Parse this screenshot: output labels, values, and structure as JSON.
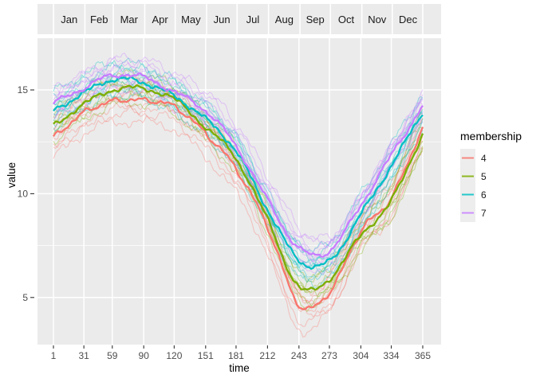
{
  "chart_data": {
    "type": "line",
    "title": "",
    "xlabel": "time",
    "ylabel": "value",
    "x_breaks": [
      1,
      31,
      59,
      90,
      120,
      151,
      181,
      212,
      243,
      273,
      304,
      334,
      365
    ],
    "y_breaks": [
      5,
      10,
      15
    ],
    "y_minor_breaks": [
      7.5,
      12.5
    ],
    "xlim": [
      1,
      365
    ],
    "ylim": [
      2.7,
      17.5
    ],
    "grid": "on",
    "legend_position": "right",
    "month_labels": [
      "Jan",
      "Feb",
      "Mar",
      "Apr",
      "May",
      "Jun",
      "Jul",
      "Aug",
      "Sep",
      "Oct",
      "Nov",
      "Dec"
    ],
    "month_boundary_days": [
      1,
      32,
      60,
      91,
      121,
      152,
      182,
      213,
      244,
      274,
      305,
      335,
      365
    ],
    "month_mid_days": [
      16.5,
      46,
      75.5,
      106,
      136.5,
      167,
      197.5,
      228.5,
      259,
      289.5,
      320,
      350.5
    ],
    "legend": {
      "title": "membership",
      "entries": [
        {
          "label": "4",
          "color": "#F8766D"
        },
        {
          "label": "5",
          "color": "#7CAE00"
        },
        {
          "label": "6",
          "color": "#00BFC4"
        },
        {
          "label": "7",
          "color": "#C77CFF"
        }
      ]
    },
    "sample_days": [
      1,
      31,
      59,
      90,
      120,
      151,
      181,
      212,
      243,
      273,
      304,
      334,
      365
    ],
    "series": [
      {
        "name": "4",
        "color": "#F8766D",
        "mean": [
          12.7,
          13.9,
          14.45,
          14.5,
          14.2,
          12.9,
          11.2,
          8.4,
          4.65,
          5.25,
          8.2,
          9.8,
          13.2
        ],
        "member_offsets": [
          -1.05,
          -0.65,
          -0.4,
          -0.15,
          0.15,
          0.35,
          0.55,
          0.75
        ]
      },
      {
        "name": "5",
        "color": "#7CAE00",
        "mean": [
          13.3,
          14.3,
          15.0,
          15.05,
          14.55,
          13.2,
          11.7,
          8.75,
          5.5,
          5.9,
          8.0,
          9.65,
          12.9
        ],
        "member_offsets": [
          -0.7,
          -0.4,
          -0.15,
          0.15,
          0.4,
          0.65
        ]
      },
      {
        "name": "6",
        "color": "#00BFC4",
        "mean": [
          14.0,
          14.85,
          15.5,
          15.35,
          14.7,
          13.6,
          12.05,
          9.25,
          6.8,
          6.75,
          9.0,
          11.35,
          13.95
        ],
        "member_offsets": [
          -0.8,
          -0.55,
          -0.35,
          -0.15,
          0.0,
          0.2,
          0.4,
          0.6,
          0.8
        ]
      },
      {
        "name": "7",
        "color": "#C77CFF",
        "mean": [
          14.35,
          15.1,
          15.7,
          15.6,
          14.9,
          14.0,
          12.3,
          9.7,
          7.37,
          7.25,
          9.45,
          11.85,
          14.25
        ],
        "member_offsets": [
          -0.7,
          -0.45,
          -0.2,
          0.0,
          0.2,
          0.4,
          0.6,
          0.8
        ]
      }
    ],
    "style": {
      "panel_bg": "#EBEBEB",
      "grid_color": "#FFFFFF",
      "tick_color": "#333333",
      "tick_label_color": "#4D4D4D",
      "month_label_color": "#1A1A1A",
      "axis_title_color": "#000000",
      "legend_key_bg": "#EDEDED",
      "member_alpha": 0.35,
      "mean_width": 2.3,
      "member_width": 1.1
    }
  }
}
